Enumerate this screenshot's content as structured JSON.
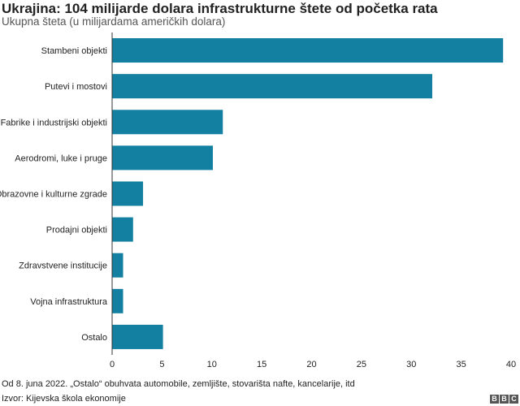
{
  "header": {
    "title": "Ukrajina: 104 milijarde dolara infrastrukturne štete od početka rata",
    "subtitle": "Ukupna šteta (u milijardama američkih dolara)"
  },
  "footer": {
    "note": "Od 8. juna 2022. „Ostalo“ obuhvata automobile, zemljište, stovarišta nafte, kancelarije, itd",
    "source": "Izvor: Kijevska škola ekonomije",
    "logo_letters": [
      "B",
      "B",
      "C"
    ]
  },
  "chart_data": {
    "type": "bar",
    "orientation": "horizontal",
    "title": "Ukrajina: 104 milijarde dolara infrastrukturne štete od početka rata",
    "subtitle": "Ukupna šteta (u milijardama američkih dolara)",
    "xlabel": "",
    "ylabel": "",
    "categories": [
      "Stambeni objekti",
      "Putevi i mostovi",
      "Fabrike i industrijski objekti",
      "Aerodromi, luke i pruge",
      "Obrazovne i kulturne zgrade",
      "Prodajni objekti",
      "Zdravstvene institucije",
      "Vojna infrastruktura",
      "Ostalo"
    ],
    "values": [
      39.2,
      32.1,
      11.1,
      10.1,
      3.1,
      2.1,
      1.1,
      1.1,
      5.1
    ],
    "xlim": [
      0,
      40
    ],
    "xticks": [
      0,
      5,
      10,
      15,
      20,
      25,
      30,
      35,
      40
    ],
    "color": "#1380A1",
    "grid": false
  }
}
